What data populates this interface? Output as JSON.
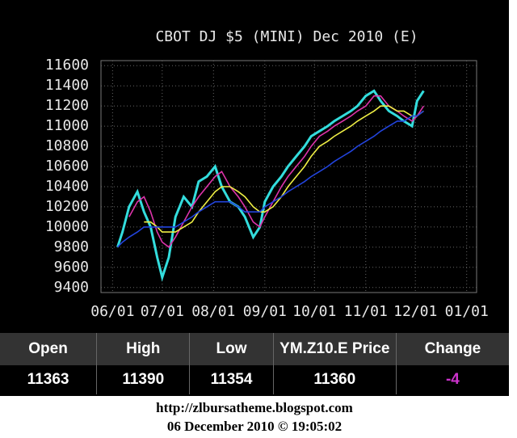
{
  "chart_data": {
    "type": "line",
    "title": "CBOT DJ $5 (MINI) Dec 2010 (E)",
    "x": [
      3,
      6,
      10,
      15,
      19,
      23,
      27,
      30,
      34,
      38,
      43,
      48,
      52,
      57,
      62,
      66,
      71,
      76,
      80,
      85,
      89,
      92,
      97,
      102,
      106,
      111,
      116,
      120,
      125,
      130,
      134,
      139,
      144,
      148,
      153,
      158,
      162,
      167,
      172,
      176,
      181,
      184,
      188
    ],
    "series": [
      {
        "color": "#33dddd",
        "values": [
          9800,
          9950,
          10200,
          10350,
          10150,
          10000,
          9700,
          9500,
          9700,
          10100,
          10300,
          10200,
          10450,
          10500,
          10600,
          10400,
          10250,
          10200,
          10100,
          9900,
          10000,
          10250,
          10400,
          10500,
          10600,
          10700,
          10800,
          10900,
          10950,
          11000,
          11050,
          11100,
          11150,
          11200,
          11300,
          11350,
          11250,
          11150,
          11100,
          11050,
          11000,
          11250,
          11350
        ]
      },
      {
        "color": "#dd33aa",
        "values": [
          null,
          null,
          10100,
          10250,
          10300,
          10150,
          9950,
          9850,
          9800,
          9900,
          10050,
          10200,
          10300,
          10400,
          10500,
          10550,
          10400,
          10300,
          10200,
          10050,
          10000,
          10100,
          10250,
          10400,
          10500,
          10600,
          10700,
          10800,
          10900,
          10950,
          11000,
          11050,
          11100,
          11150,
          11200,
          11300,
          11300,
          11200,
          11150,
          11100,
          11050,
          11100,
          11200
        ]
      },
      {
        "color": "#eeee44",
        "values": [
          null,
          null,
          null,
          null,
          10050,
          10050,
          10000,
          9950,
          9950,
          9950,
          10000,
          10050,
          10150,
          10250,
          10350,
          10400,
          10400,
          10350,
          10300,
          10200,
          10150,
          10150,
          10200,
          10300,
          10400,
          10500,
          10600,
          10700,
          10800,
          10850,
          10900,
          10950,
          11000,
          11050,
          11100,
          11150,
          11200,
          11200,
          11150,
          11150,
          11100,
          11100,
          11150
        ]
      },
      {
        "color": "#2244dd",
        "values": [
          9800,
          9850,
          9900,
          9950,
          10000,
          10000,
          10000,
          10000,
          10000,
          10000,
          10050,
          10100,
          10150,
          10200,
          10250,
          10250,
          10250,
          10200,
          10150,
          10150,
          10150,
          10200,
          10250,
          10300,
          10350,
          10400,
          10450,
          10500,
          10550,
          10600,
          10650,
          10700,
          10750,
          10800,
          10850,
          10900,
          10950,
          11000,
          11050,
          11050,
          11100,
          11100,
          11150
        ]
      }
    ],
    "xlim": [
      -7,
      220
    ],
    "xticks": [
      {
        "value": 0,
        "label": "06/01"
      },
      {
        "value": 30,
        "label": "07/01"
      },
      {
        "value": 61,
        "label": "08/01"
      },
      {
        "value": 92,
        "label": "09/01"
      },
      {
        "value": 122,
        "label": "10/01"
      },
      {
        "value": 153,
        "label": "11/01"
      },
      {
        "value": 183,
        "label": "12/01"
      },
      {
        "value": 214,
        "label": "01/01"
      }
    ],
    "ylim": [
      9350,
      11650
    ],
    "yticks": [
      9400,
      9600,
      9800,
      10000,
      10200,
      10400,
      10600,
      10800,
      11000,
      11200,
      11400,
      11600
    ],
    "grid": true
  },
  "quote_table": {
    "headers": [
      "Open",
      "High",
      "Low",
      "YM.Z10.E Price",
      "Change"
    ],
    "values": [
      11363,
      11390,
      11354,
      11360,
      -4
    ]
  },
  "footer": {
    "url": "http://zlbursatheme.blogspot.com",
    "timestamp": "06 December 2010 © 19:05:02"
  }
}
